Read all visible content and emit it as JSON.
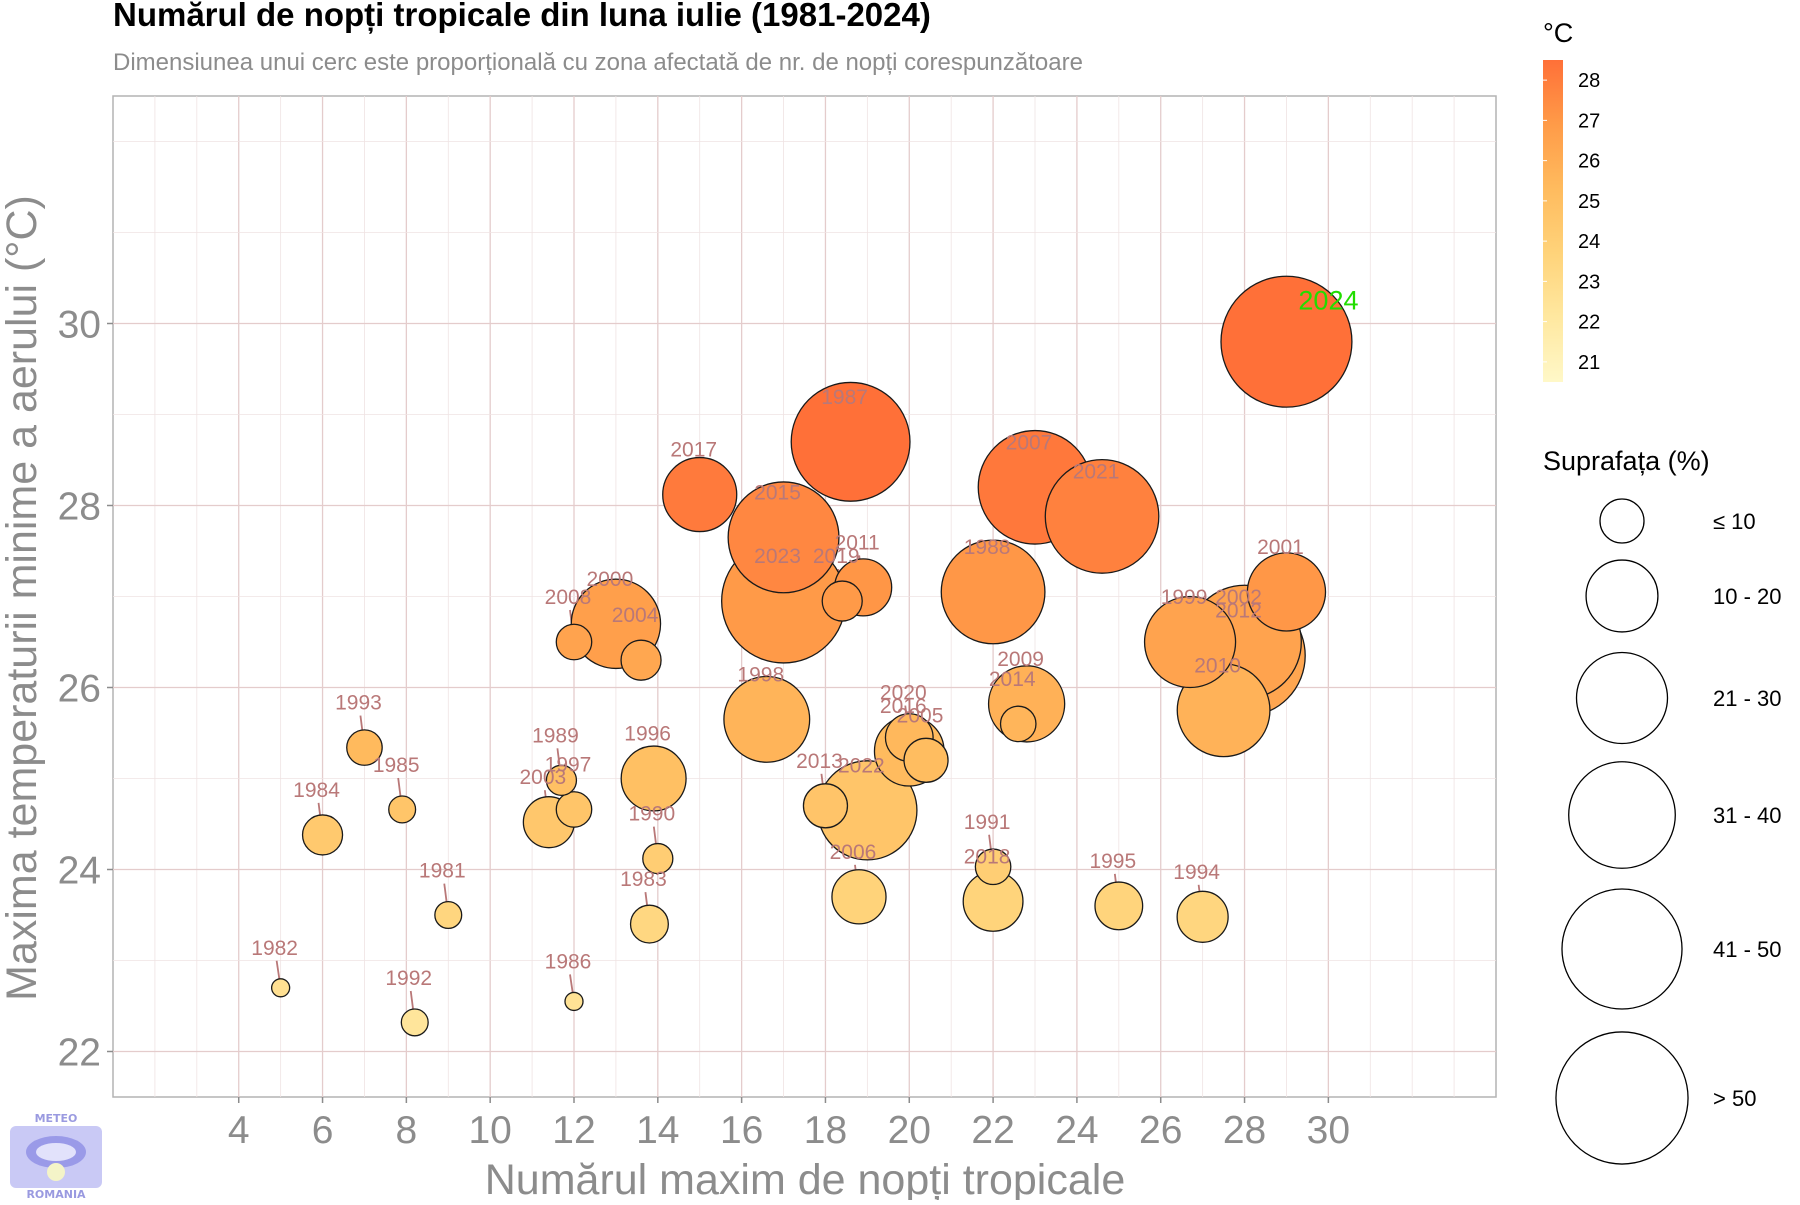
{
  "chart_data": {
    "type": "scatter",
    "title": "Numărul de nopți tropicale din luna iulie (1981-2024)",
    "subtitle": "Dimensiunea unui cerc este proporțională cu zona afectată de nr. de nopți corespunzătoare",
    "xlabel": "Numărul maxim de nopți tropicale",
    "ylabel": "Maxima temperaturii minime a aerului (°C)",
    "xlim": [
      1,
      34
    ],
    "ylim": [
      21.5,
      32.5
    ],
    "x_ticks": [
      4,
      6,
      8,
      10,
      12,
      14,
      16,
      18,
      20,
      22,
      24,
      26,
      28,
      30
    ],
    "y_ticks": [
      22,
      24,
      26,
      28,
      30
    ],
    "grid": true,
    "color_legend": {
      "title": "°C",
      "labels": [
        "28",
        "27",
        "26",
        "25",
        "24",
        "23",
        "22",
        "21"
      ],
      "min": 20.5,
      "max": 28.5,
      "colors": [
        "#fff8c8",
        "#ffe8a0",
        "#ffd37a",
        "#ffbb5e",
        "#ff9b48",
        "#ff7038"
      ]
    },
    "size_legend": {
      "title": "Suprafața (%)",
      "labels": [
        "≤ 10",
        "10 - 20",
        "21 - 30",
        "31 - 40",
        "41 - 50",
        "> 50"
      ],
      "size_values": [
        5,
        15,
        25,
        35,
        45,
        55
      ]
    },
    "highlight": {
      "label": "2024",
      "color": "#22dd00"
    },
    "points": [
      {
        "year": "1981",
        "x": 9.0,
        "y": 23.5,
        "area": 1.5
      },
      {
        "year": "1982",
        "x": 5.0,
        "y": 22.7,
        "area": 0.5
      },
      {
        "year": "1983",
        "x": 13.8,
        "y": 23.4,
        "area": 3.5
      },
      {
        "year": "1984",
        "x": 6.0,
        "y": 24.38,
        "area": 4
      },
      {
        "year": "1985",
        "x": 7.9,
        "y": 24.66,
        "area": 1.5
      },
      {
        "year": "1986",
        "x": 12.0,
        "y": 22.55,
        "area": 0.5
      },
      {
        "year": "1987",
        "x": 18.6,
        "y": 28.7,
        "area": 44
      },
      {
        "year": "1988",
        "x": 22.0,
        "y": 27.05,
        "area": 33
      },
      {
        "year": "1989",
        "x": 11.7,
        "y": 24.98,
        "area": 2
      },
      {
        "year": "1990",
        "x": 14.0,
        "y": 24.12,
        "area": 2
      },
      {
        "year": "1991",
        "x": 22.0,
        "y": 24.03,
        "area": 3
      },
      {
        "year": "1992",
        "x": 8.2,
        "y": 22.32,
        "area": 1.5
      },
      {
        "year": "1993",
        "x": 7.0,
        "y": 25.34,
        "area": 3
      },
      {
        "year": "1994",
        "x": 27.0,
        "y": 23.48,
        "area": 7
      },
      {
        "year": "1995",
        "x": 25.0,
        "y": 23.6,
        "area": 6
      },
      {
        "year": "1996",
        "x": 13.9,
        "y": 25.0,
        "area": 12
      },
      {
        "year": "1997",
        "x": 12.0,
        "y": 24.66,
        "area": 3
      },
      {
        "year": "1998",
        "x": 16.6,
        "y": 25.65,
        "area": 22
      },
      {
        "year": "1999",
        "x": 26.7,
        "y": 26.5,
        "area": 25
      },
      {
        "year": "2000",
        "x": 13.0,
        "y": 26.7,
        "area": 24
      },
      {
        "year": "2001",
        "x": 29.0,
        "y": 27.05,
        "area": 18
      },
      {
        "year": "2002",
        "x": 28.0,
        "y": 26.5,
        "area": 40
      },
      {
        "year": "2003",
        "x": 11.4,
        "y": 24.52,
        "area": 7
      },
      {
        "year": "2004",
        "x": 13.6,
        "y": 26.3,
        "area": 4
      },
      {
        "year": "2005",
        "x": 20.4,
        "y": 25.2,
        "area": 5
      },
      {
        "year": "2006",
        "x": 18.8,
        "y": 23.7,
        "area": 8
      },
      {
        "year": "2007",
        "x": 23.0,
        "y": 28.2,
        "area": 40
      },
      {
        "year": "2008",
        "x": 12.0,
        "y": 26.5,
        "area": 3
      },
      {
        "year": "2009",
        "x": 22.8,
        "y": 25.82,
        "area": 17
      },
      {
        "year": "2010",
        "x": 27.5,
        "y": 25.75,
        "area": 26
      },
      {
        "year": "2011",
        "x": 18.9,
        "y": 27.1,
        "area": 9
      },
      {
        "year": "2012",
        "x": 28.0,
        "y": 26.35,
        "area": 46
      },
      {
        "year": "2013",
        "x": 18.0,
        "y": 24.7,
        "area": 5
      },
      {
        "year": "2014",
        "x": 22.6,
        "y": 25.6,
        "area": 3
      },
      {
        "year": "2015",
        "x": 17.0,
        "y": 27.65,
        "area": 38
      },
      {
        "year": "2016",
        "x": 20.0,
        "y": 25.3,
        "area": 14
      },
      {
        "year": "2017",
        "x": 15.0,
        "y": 28.12,
        "area": 16
      },
      {
        "year": "2018",
        "x": 22.0,
        "y": 23.65,
        "area": 10
      },
      {
        "year": "2019",
        "x": 18.4,
        "y": 26.95,
        "area": 4
      },
      {
        "year": "2020",
        "x": 20.0,
        "y": 25.45,
        "area": 6
      },
      {
        "year": "2021",
        "x": 24.6,
        "y": 27.88,
        "area": 40
      },
      {
        "year": "2022",
        "x": 19.0,
        "y": 24.65,
        "area": 30
      },
      {
        "year": "2023",
        "x": 17.0,
        "y": 26.95,
        "area": 48
      },
      {
        "year": "2024",
        "x": 29.0,
        "y": 29.8,
        "area": 54
      }
    ]
  },
  "logo": {
    "top_text": "METEO",
    "bottom_text": "ROMANIA"
  }
}
